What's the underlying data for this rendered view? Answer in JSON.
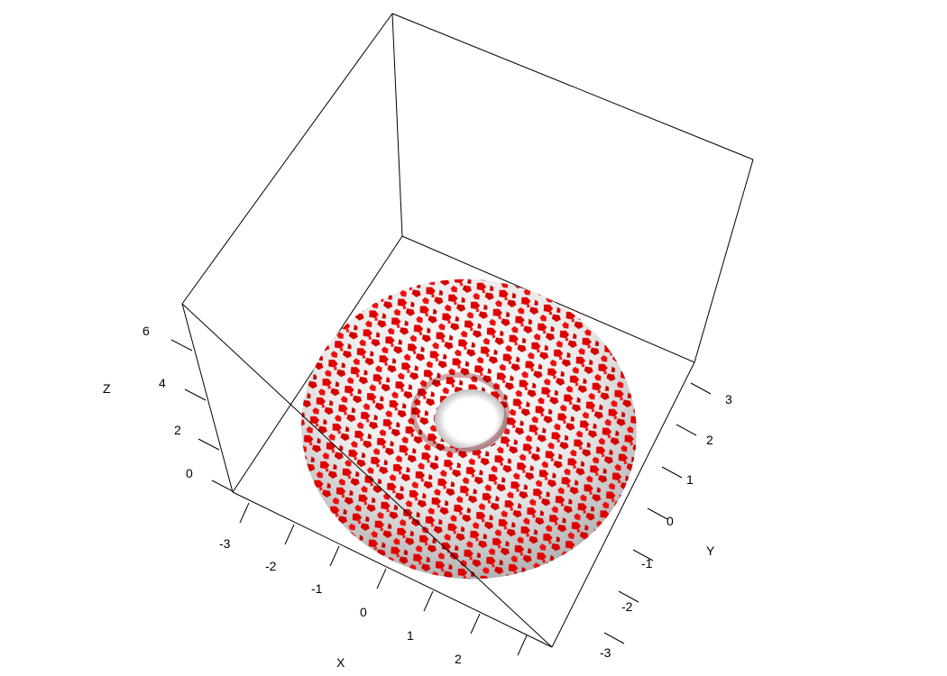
{
  "chart_data": {
    "type": "surface3d",
    "title": "",
    "surface": {
      "shape": "torus",
      "description_colors": {
        "base": "#f2f2f2",
        "patch": "#e00000"
      },
      "hole": "center"
    },
    "axes": {
      "x": {
        "label": "X",
        "ticks": [
          "-3",
          "-2",
          "-1",
          "0",
          "1",
          "2"
        ]
      },
      "y": {
        "label": "Y",
        "ticks": [
          "3",
          "2",
          "1",
          "0",
          "-1",
          "-2",
          "-3"
        ]
      },
      "z": {
        "label": "Z",
        "ticks": [
          "6",
          "4",
          "2",
          "0"
        ]
      }
    },
    "box": true,
    "grid": false
  }
}
